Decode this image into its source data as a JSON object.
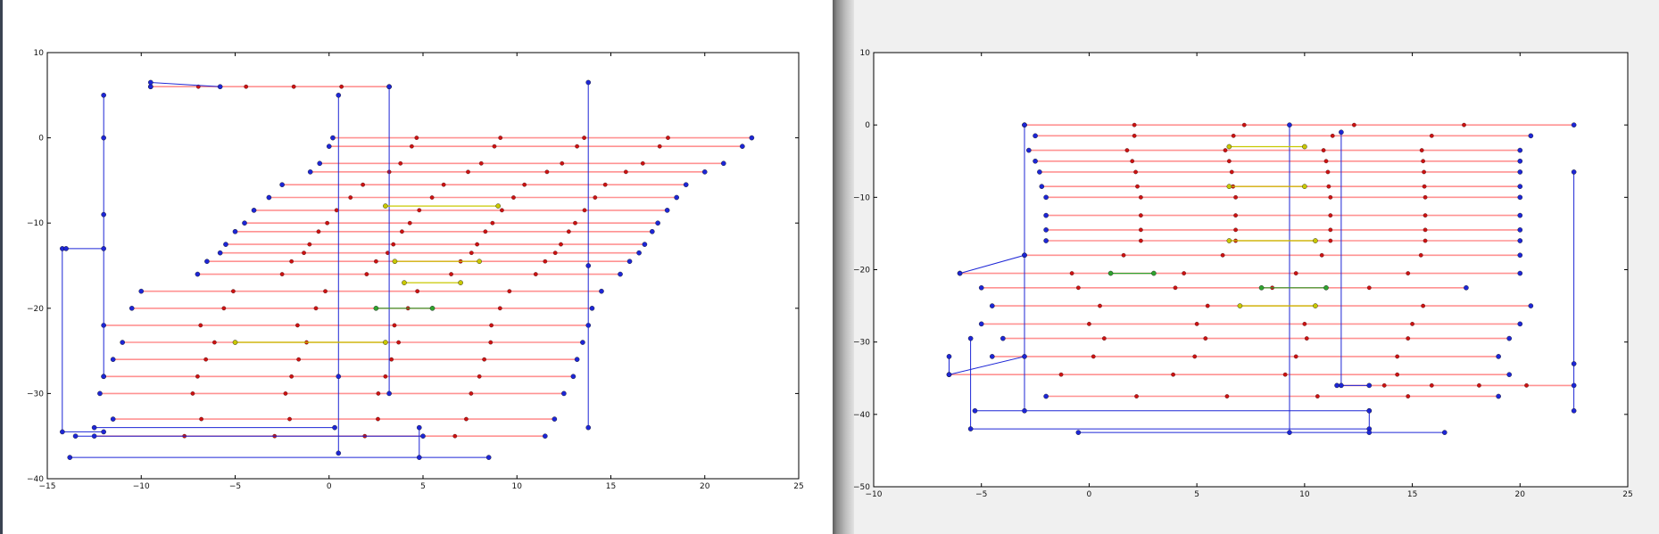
{
  "chart_data": [
    {
      "type": "line",
      "xlim": [
        -15,
        25
      ],
      "ylim": [
        -40,
        10
      ],
      "x_ticks": [
        "−15",
        "−10",
        "−5",
        "0",
        "5",
        "10",
        "15",
        "20",
        "25"
      ],
      "y_ticks": [
        "10",
        "0",
        "−10",
        "−20",
        "−30",
        "−40"
      ],
      "grid": false,
      "colors": {
        "hop": "#1d26d6",
        "red": "#ff7f7f",
        "yellow": "#c8c800",
        "green": "#2fa32f"
      },
      "series": [
        {
          "style": "red",
          "x": [
            -9.5,
            3.2
          ],
          "y": [
            6,
            6
          ]
        },
        {
          "style": "red",
          "x": [
            0.2,
            22.5
          ],
          "y": [
            0,
            0
          ]
        },
        {
          "style": "red",
          "x": [
            0.0,
            22.0
          ],
          "y": [
            -1,
            -1
          ]
        },
        {
          "style": "red",
          "x": [
            -0.5,
            21.0
          ],
          "y": [
            -3,
            -3
          ]
        },
        {
          "style": "red",
          "x": [
            -1.0,
            20.0
          ],
          "y": [
            -4,
            -4
          ]
        },
        {
          "style": "red",
          "x": [
            -2.5,
            19.0
          ],
          "y": [
            -5.5,
            -5.5
          ]
        },
        {
          "style": "red",
          "x": [
            -3.2,
            18.5
          ],
          "y": [
            -7,
            -7
          ]
        },
        {
          "style": "red",
          "x": [
            -4.0,
            18.0
          ],
          "y": [
            -8.5,
            -8.5
          ]
        },
        {
          "style": "red",
          "x": [
            -4.5,
            17.5
          ],
          "y": [
            -10,
            -10
          ]
        },
        {
          "style": "red",
          "x": [
            -5.0,
            17.2
          ],
          "y": [
            -11,
            -11
          ]
        },
        {
          "style": "red",
          "x": [
            -5.5,
            16.8
          ],
          "y": [
            -12.5,
            -12.5
          ]
        },
        {
          "style": "red",
          "x": [
            -5.8,
            16.5
          ],
          "y": [
            -13.5,
            -13.5
          ]
        },
        {
          "style": "red",
          "x": [
            -6.5,
            16.0
          ],
          "y": [
            -14.5,
            -14.5
          ]
        },
        {
          "style": "red",
          "x": [
            -7.0,
            15.5
          ],
          "y": [
            -16,
            -16
          ]
        },
        {
          "style": "red",
          "x": [
            -10.0,
            14.5
          ],
          "y": [
            -18,
            -18
          ]
        },
        {
          "style": "red",
          "x": [
            -10.5,
            14.0
          ],
          "y": [
            -20,
            -20
          ]
        },
        {
          "style": "red",
          "x": [
            -12.0,
            13.8
          ],
          "y": [
            -22,
            -22
          ]
        },
        {
          "style": "red",
          "x": [
            -11.0,
            13.5
          ],
          "y": [
            -24,
            -24
          ]
        },
        {
          "style": "red",
          "x": [
            -11.5,
            13.2
          ],
          "y": [
            -26,
            -26
          ]
        },
        {
          "style": "red",
          "x": [
            -12.0,
            13.0
          ],
          "y": [
            -28,
            -28
          ]
        },
        {
          "style": "red",
          "x": [
            -12.2,
            12.5
          ],
          "y": [
            -30,
            -30
          ]
        },
        {
          "style": "red",
          "x": [
            -11.5,
            12.0
          ],
          "y": [
            -33,
            -33
          ]
        },
        {
          "style": "red",
          "x": [
            -12.5,
            11.5
          ],
          "y": [
            -35,
            -35
          ]
        },
        {
          "style": "hop",
          "x": [
            -9.5,
            -9.5,
            -5.8
          ],
          "y": [
            6,
            6.5,
            6
          ]
        },
        {
          "style": "hop",
          "x": [
            -12,
            -12,
            -12,
            -12
          ],
          "y": [
            5,
            0,
            -9,
            -28
          ]
        },
        {
          "style": "hop",
          "x": [
            0.5,
            0.5,
            0.5
          ],
          "y": [
            5,
            -28,
            -37
          ]
        },
        {
          "style": "hop",
          "x": [
            3.2,
            3.2
          ],
          "y": [
            6,
            -30
          ]
        },
        {
          "style": "hop",
          "x": [
            13.8,
            13.8,
            13.8
          ],
          "y": [
            6.5,
            -15,
            -34
          ]
        },
        {
          "style": "hop",
          "x": [
            -14.2,
            -14.2,
            -12.0
          ],
          "y": [
            -13,
            -34.5,
            -34.5
          ]
        },
        {
          "style": "hop",
          "x": [
            -14,
            -12
          ],
          "y": [
            -13,
            -13
          ]
        },
        {
          "style": "hop",
          "x": [
            -13.8,
            8.5
          ],
          "y": [
            -37.5,
            -37.5
          ]
        },
        {
          "style": "hop",
          "x": [
            -13.5,
            5.0
          ],
          "y": [
            -35,
            -35
          ]
        },
        {
          "style": "hop",
          "x": [
            4.8,
            4.8
          ],
          "y": [
            -34,
            -37.5
          ]
        },
        {
          "style": "hop",
          "x": [
            -12.5,
            0.3
          ],
          "y": [
            -34,
            -34
          ]
        },
        {
          "style": "yellow",
          "x": [
            3.0,
            9.0
          ],
          "y": [
            -8,
            -8
          ]
        },
        {
          "style": "yellow",
          "x": [
            3.5,
            8.0
          ],
          "y": [
            -14.5,
            -14.5
          ]
        },
        {
          "style": "yellow",
          "x": [
            4.0,
            7.0
          ],
          "y": [
            -17,
            -17
          ]
        },
        {
          "style": "yellow",
          "x": [
            -5.0,
            3.0
          ],
          "y": [
            -24,
            -24
          ]
        },
        {
          "style": "green",
          "x": [
            2.5,
            5.5
          ],
          "y": [
            -20,
            -20
          ]
        }
      ]
    },
    {
      "type": "line",
      "xlim": [
        -10,
        25
      ],
      "ylim": [
        -50,
        10
      ],
      "x_ticks": [
        "−10",
        "−5",
        "0",
        "5",
        "10",
        "15",
        "20",
        "25"
      ],
      "y_ticks": [
        "10",
        "0",
        "−10",
        "−20",
        "−30",
        "−40",
        "−50"
      ],
      "grid": false,
      "colors": {
        "hop": "#1d26d6",
        "red": "#ff7f7f",
        "yellow": "#c8c800",
        "green": "#2fa32f"
      },
      "series": [
        {
          "style": "red",
          "x": [
            -3.0,
            22.5
          ],
          "y": [
            0,
            0
          ]
        },
        {
          "style": "red",
          "x": [
            -2.5,
            20.5
          ],
          "y": [
            -1.5,
            -1.5
          ]
        },
        {
          "style": "red",
          "x": [
            -2.8,
            20.0
          ],
          "y": [
            -3.5,
            -3.5
          ]
        },
        {
          "style": "red",
          "x": [
            -2.5,
            20.0
          ],
          "y": [
            -5,
            -5
          ]
        },
        {
          "style": "red",
          "x": [
            -2.3,
            20.0
          ],
          "y": [
            -6.5,
            -6.5
          ]
        },
        {
          "style": "red",
          "x": [
            -2.2,
            20.0
          ],
          "y": [
            -8.5,
            -8.5
          ]
        },
        {
          "style": "red",
          "x": [
            -2.0,
            20.0
          ],
          "y": [
            -10,
            -10
          ]
        },
        {
          "style": "red",
          "x": [
            -2.0,
            20.0
          ],
          "y": [
            -12.5,
            -12.5
          ]
        },
        {
          "style": "red",
          "x": [
            -2.0,
            20.0
          ],
          "y": [
            -14.5,
            -14.5
          ]
        },
        {
          "style": "red",
          "x": [
            -2.0,
            20.0
          ],
          "y": [
            -16,
            -16
          ]
        },
        {
          "style": "red",
          "x": [
            -3.0,
            20.0
          ],
          "y": [
            -18,
            -18
          ]
        },
        {
          "style": "red",
          "x": [
            -6.0,
            20.0
          ],
          "y": [
            -20.5,
            -20.5
          ]
        },
        {
          "style": "red",
          "x": [
            -5.0,
            17.5
          ],
          "y": [
            -22.5,
            -22.5
          ]
        },
        {
          "style": "red",
          "x": [
            -4.5,
            20.5
          ],
          "y": [
            -25,
            -25
          ]
        },
        {
          "style": "red",
          "x": [
            -5.0,
            20.0
          ],
          "y": [
            -27.5,
            -27.5
          ]
        },
        {
          "style": "red",
          "x": [
            -4.0,
            19.5
          ],
          "y": [
            -29.5,
            -29.5
          ]
        },
        {
          "style": "red",
          "x": [
            -4.5,
            19.0
          ],
          "y": [
            -32,
            -32
          ]
        },
        {
          "style": "red",
          "x": [
            -6.5,
            19.5
          ],
          "y": [
            -34.5,
            -34.5
          ]
        },
        {
          "style": "red",
          "x": [
            11.5,
            22.5
          ],
          "y": [
            -36,
            -36
          ]
        },
        {
          "style": "red",
          "x": [
            -2.0,
            19.0
          ],
          "y": [
            -37.5,
            -37.5
          ]
        },
        {
          "style": "hop",
          "x": [
            -3.0,
            -3.0
          ],
          "y": [
            0,
            -39.5
          ]
        },
        {
          "style": "hop",
          "x": [
            9.3,
            9.3
          ],
          "y": [
            0,
            -42.5
          ]
        },
        {
          "style": "hop",
          "x": [
            11.7,
            11.7,
            13.0
          ],
          "y": [
            -1,
            -36,
            -36
          ]
        },
        {
          "style": "hop",
          "x": [
            22.5,
            22.5,
            22.5
          ],
          "y": [
            -6.5,
            -33,
            -39.5
          ]
        },
        {
          "style": "hop",
          "x": [
            -6.5,
            -6.5,
            -3.0
          ],
          "y": [
            -32,
            -34.5,
            -32
          ]
        },
        {
          "style": "hop",
          "x": [
            -5.5,
            -5.5,
            13.0
          ],
          "y": [
            -29.5,
            -42,
            -42
          ]
        },
        {
          "style": "hop",
          "x": [
            -5.3,
            13.0
          ],
          "y": [
            -39.5,
            -39.5
          ]
        },
        {
          "style": "hop",
          "x": [
            13.0,
            13.0
          ],
          "y": [
            -39.5,
            -42.5
          ]
        },
        {
          "style": "hop",
          "x": [
            -0.5,
            16.5
          ],
          "y": [
            -42.5,
            -42.5
          ]
        },
        {
          "style": "hop",
          "x": [
            -6.0,
            -3.0
          ],
          "y": [
            -20.5,
            -18
          ]
        },
        {
          "style": "yellow",
          "x": [
            6.5,
            10.0
          ],
          "y": [
            -3,
            -3
          ]
        },
        {
          "style": "yellow",
          "x": [
            6.5,
            10.0
          ],
          "y": [
            -8.5,
            -8.5
          ]
        },
        {
          "style": "yellow",
          "x": [
            6.5,
            10.5
          ],
          "y": [
            -16,
            -16
          ]
        },
        {
          "style": "yellow",
          "x": [
            7.0,
            10.5
          ],
          "y": [
            -25,
            -25
          ]
        },
        {
          "style": "green",
          "x": [
            1.0,
            3.0
          ],
          "y": [
            -20.5,
            -20.5
          ]
        },
        {
          "style": "green",
          "x": [
            8.0,
            11.0
          ],
          "y": [
            -22.5,
            -22.5
          ]
        }
      ]
    }
  ]
}
